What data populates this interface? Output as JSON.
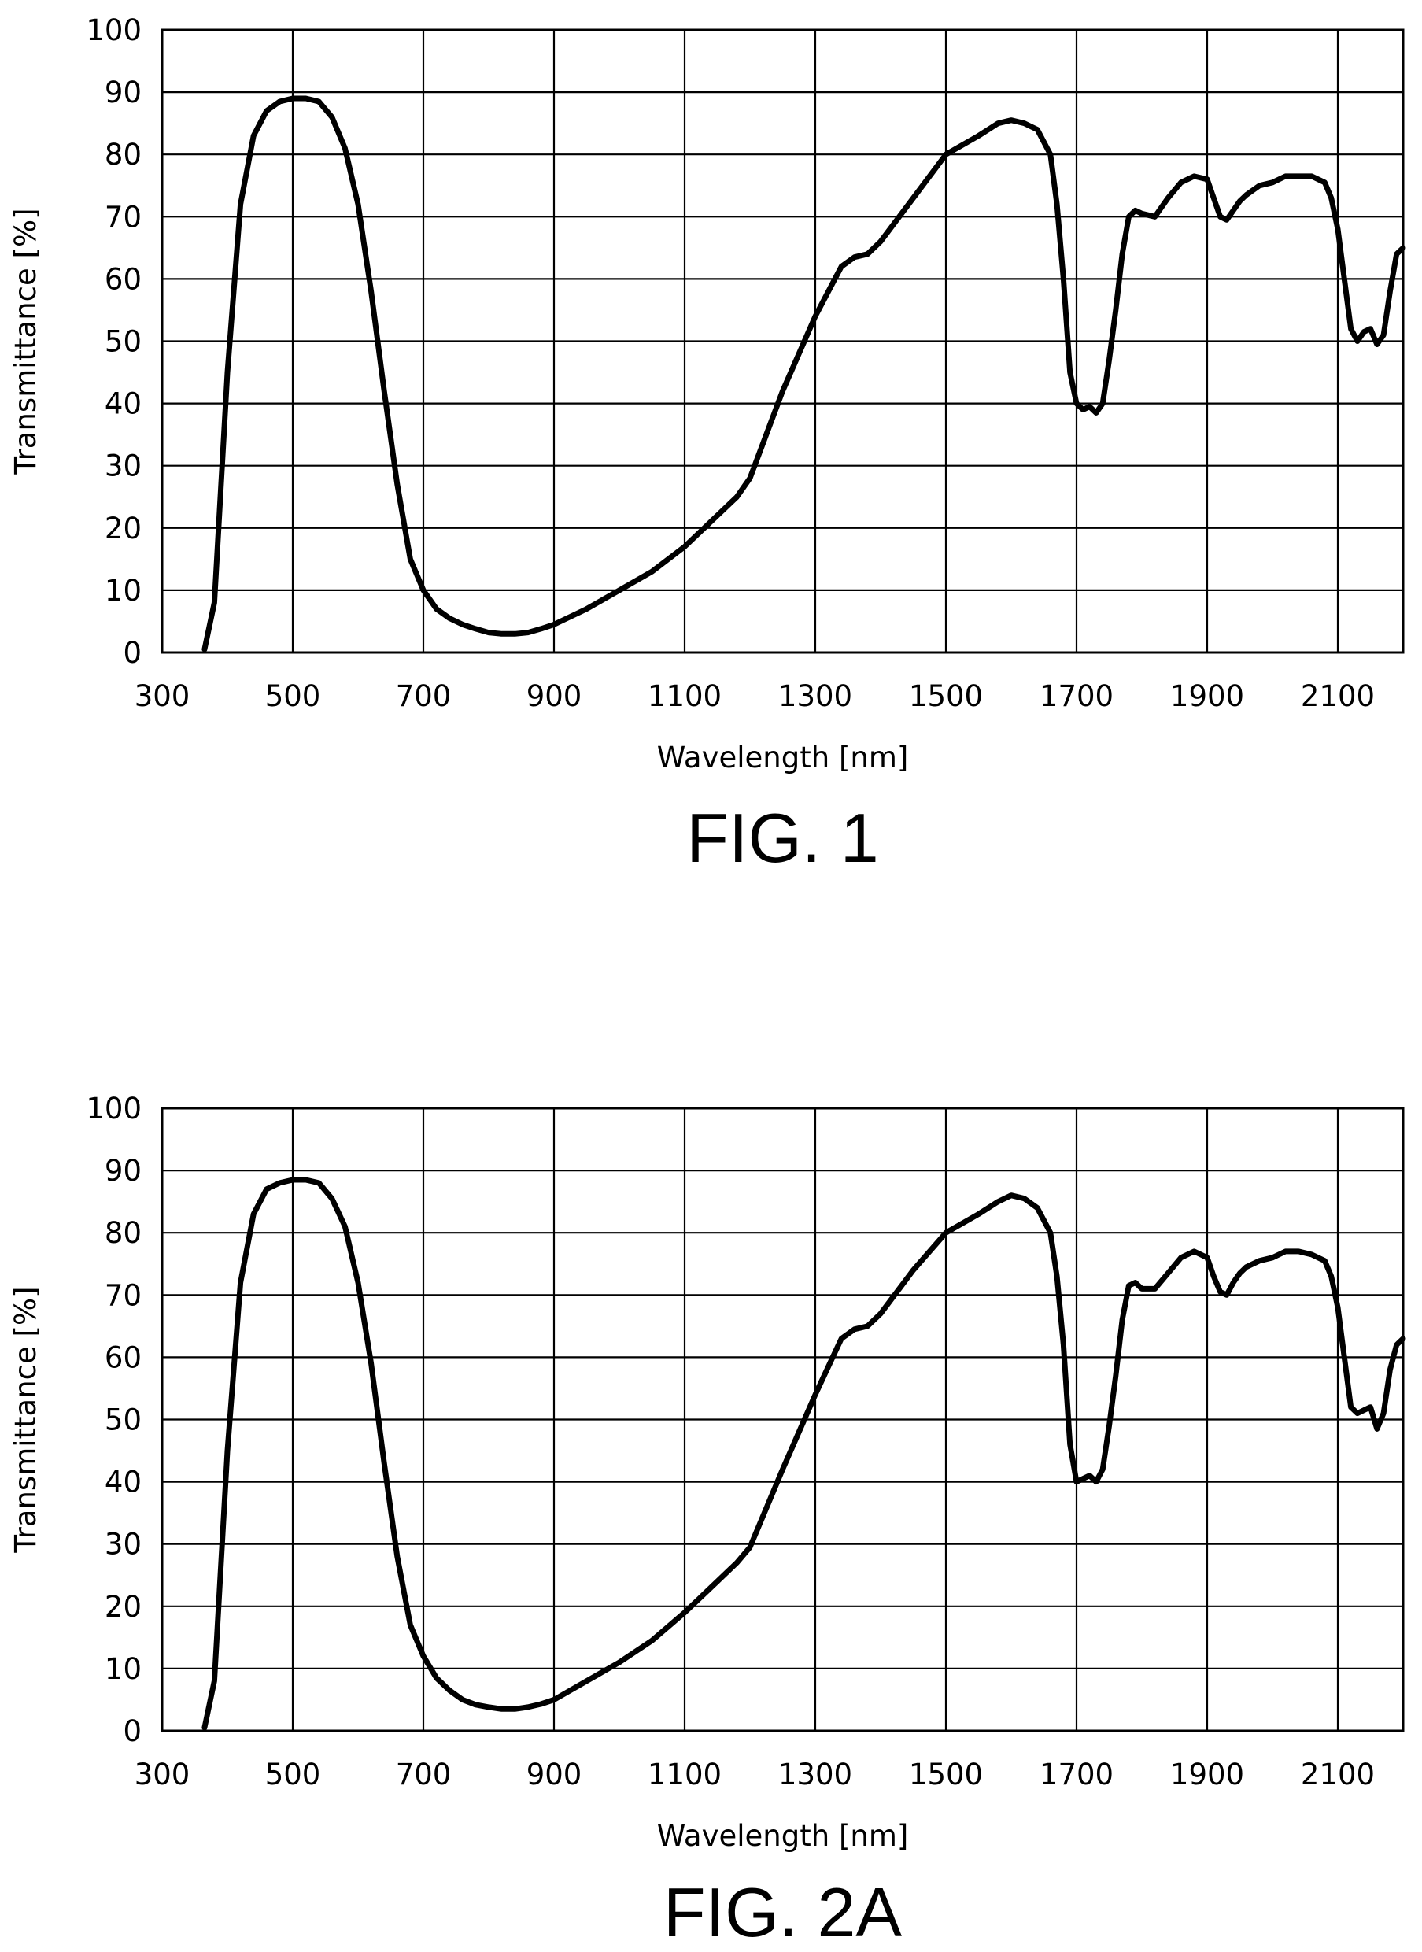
{
  "chart_data": [
    {
      "type": "line",
      "title": "FIG. 1",
      "xlabel": "Wavelength [nm]",
      "ylabel": "Transmittance [%]",
      "xlim": [
        300,
        2200
      ],
      "ylim": [
        0,
        100
      ],
      "x_ticks": [
        300,
        500,
        700,
        900,
        1100,
        1300,
        1500,
        1700,
        1900,
        2100
      ],
      "y_ticks": [
        0,
        10,
        20,
        30,
        40,
        50,
        60,
        70,
        80,
        90,
        100
      ],
      "grid": true,
      "series": [
        {
          "x": [
            365,
            380,
            400,
            420,
            440,
            460,
            480,
            500,
            520,
            540,
            560,
            580,
            600,
            620,
            640,
            660,
            680,
            700,
            720,
            740,
            760,
            780,
            800,
            820,
            840,
            860,
            880,
            900,
            950,
            1000,
            1050,
            1100,
            1150,
            1180,
            1200,
            1250,
            1300,
            1340,
            1360,
            1380,
            1400,
            1450,
            1500,
            1550,
            1580,
            1600,
            1620,
            1640,
            1660,
            1670,
            1680,
            1690,
            1700,
            1710,
            1720,
            1730,
            1740,
            1750,
            1760,
            1770,
            1780,
            1790,
            1800,
            1820,
            1840,
            1860,
            1880,
            1900,
            1910,
            1920,
            1930,
            1940,
            1950,
            1960,
            1980,
            2000,
            2020,
            2040,
            2060,
            2080,
            2090,
            2100,
            2110,
            2120,
            2130,
            2140,
            2150,
            2160,
            2170,
            2180,
            2190,
            2200
          ],
          "y": [
            0.5,
            8,
            45,
            72,
            83,
            87,
            88.5,
            89,
            89,
            88.5,
            86,
            81,
            72,
            58,
            42,
            27,
            15,
            10,
            7,
            5.5,
            4.5,
            3.8,
            3.2,
            3,
            3,
            3.2,
            3.8,
            4.5,
            7,
            10,
            13,
            17,
            22,
            25,
            28,
            42,
            54,
            62,
            63.5,
            64,
            66,
            73,
            80,
            83,
            85,
            85.5,
            85,
            84,
            80,
            72,
            60,
            45,
            40,
            39,
            39.5,
            38.5,
            40,
            47,
            55,
            64,
            70,
            71,
            70.5,
            70,
            73,
            75.5,
            76.5,
            76,
            73,
            70,
            69.5,
            71,
            72.5,
            73.5,
            75,
            75.5,
            76.5,
            76.5,
            76.5,
            75.5,
            73,
            68,
            60,
            52,
            50,
            51.5,
            52,
            49.5,
            51,
            58,
            64,
            65
          ]
        }
      ]
    },
    {
      "type": "line",
      "title": "FIG. 2A",
      "xlabel": "Wavelength [nm]",
      "ylabel": "Transmittance [%]",
      "xlim": [
        300,
        2200
      ],
      "ylim": [
        0,
        100
      ],
      "x_ticks": [
        300,
        500,
        700,
        900,
        1100,
        1300,
        1500,
        1700,
        1900,
        2100
      ],
      "y_ticks": [
        0,
        10,
        20,
        30,
        40,
        50,
        60,
        70,
        80,
        90,
        100
      ],
      "grid": true,
      "series": [
        {
          "x": [
            365,
            380,
            400,
            420,
            440,
            460,
            480,
            500,
            520,
            540,
            560,
            580,
            600,
            620,
            640,
            660,
            680,
            700,
            720,
            740,
            760,
            780,
            800,
            820,
            840,
            860,
            880,
            900,
            950,
            1000,
            1050,
            1100,
            1150,
            1180,
            1200,
            1250,
            1300,
            1340,
            1360,
            1380,
            1400,
            1450,
            1500,
            1550,
            1580,
            1600,
            1620,
            1640,
            1660,
            1670,
            1680,
            1690,
            1700,
            1710,
            1720,
            1730,
            1740,
            1750,
            1760,
            1770,
            1780,
            1790,
            1800,
            1820,
            1840,
            1860,
            1880,
            1900,
            1910,
            1920,
            1930,
            1940,
            1950,
            1960,
            1980,
            2000,
            2020,
            2040,
            2060,
            2080,
            2090,
            2100,
            2110,
            2120,
            2130,
            2140,
            2150,
            2160,
            2170,
            2180,
            2190,
            2200
          ],
          "y": [
            0.5,
            8,
            45,
            72,
            83,
            87,
            88,
            88.5,
            88.5,
            88,
            85.5,
            81,
            72,
            59,
            43,
            28,
            17,
            12,
            8.5,
            6.5,
            5,
            4.2,
            3.8,
            3.5,
            3.5,
            3.8,
            4.3,
            5,
            8,
            11,
            14.5,
            19,
            24,
            27,
            29.5,
            42,
            54,
            63,
            64.5,
            65,
            67,
            74,
            80,
            83,
            85,
            86,
            85.5,
            84,
            80,
            73,
            62,
            46,
            40,
            40.5,
            41,
            40,
            42,
            49,
            57,
            66,
            71.5,
            72,
            71,
            71,
            73.5,
            76,
            77,
            76,
            73,
            70.5,
            70,
            72,
            73.5,
            74.5,
            75.5,
            76,
            77,
            77,
            76.5,
            75.5,
            73,
            68,
            60,
            52,
            51,
            51.5,
            52,
            48.5,
            51,
            58,
            62,
            63
          ]
        }
      ]
    }
  ]
}
